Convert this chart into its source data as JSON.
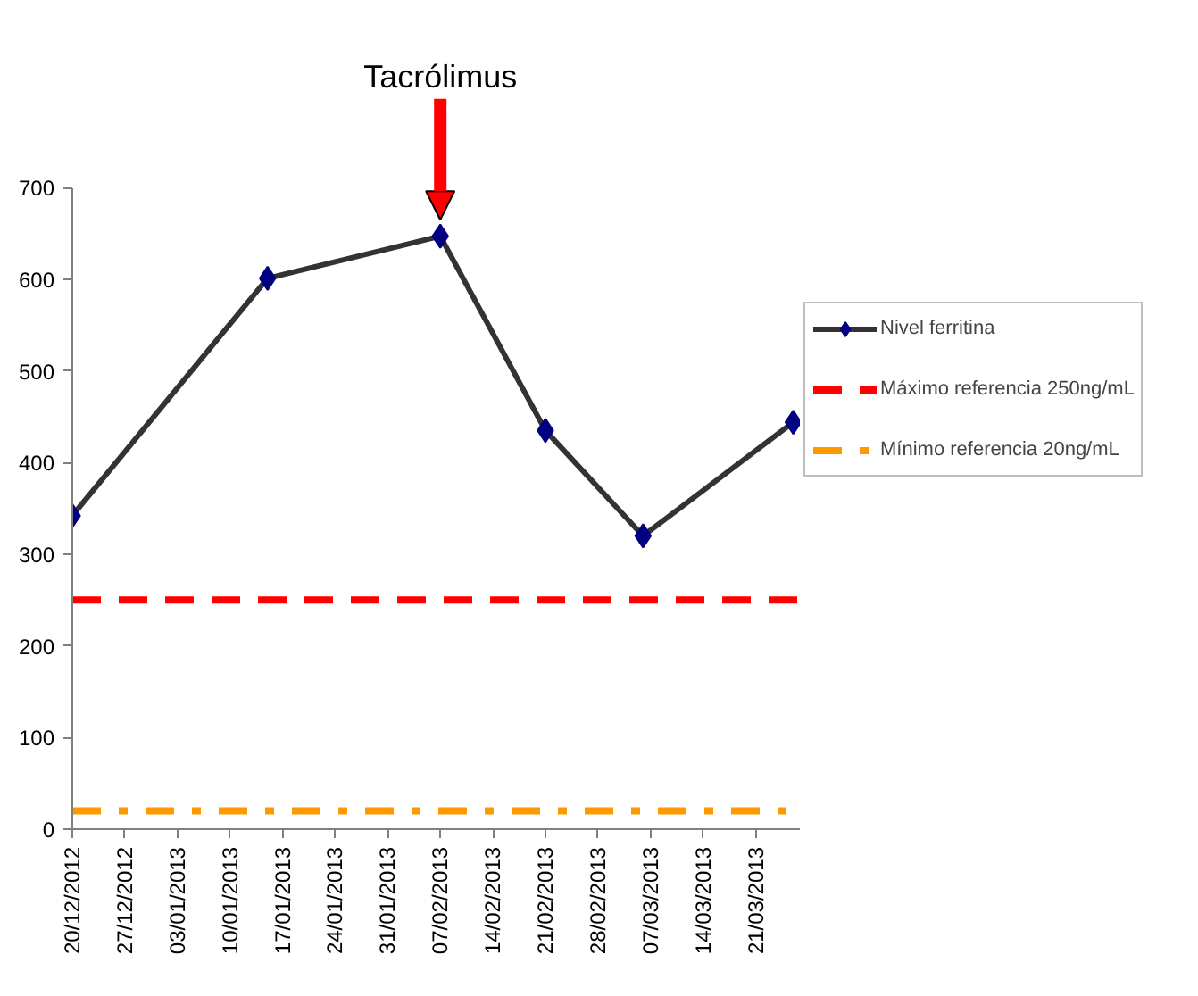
{
  "chart_data": {
    "type": "line",
    "x": [
      "2012-12-20",
      "2013-01-15",
      "2013-02-07",
      "2013-02-21",
      "2013-03-06",
      "2013-03-26"
    ],
    "series": [
      {
        "name": "Nivel ferritina",
        "color": "#333333",
        "values": [
          342,
          601,
          647,
          435,
          320,
          444
        ]
      }
    ],
    "marker": "diamond",
    "ref_lines": [
      {
        "axis": "y",
        "value": 250,
        "label": "Máximo referencia 250ng/mL",
        "color": "#ff0000",
        "line_style": "dashed"
      },
      {
        "axis": "y",
        "value": 20,
        "label": "Mínimo referencia 20ng/mL",
        "color": "#ff9900",
        "line_style": "dashdot"
      }
    ],
    "annotations": [
      "Tacrólimus"
    ],
    "xlim": [
      "2012-12-20",
      "2013-03-27"
    ],
    "xticks": [
      {
        "value": "2012-12-20",
        "label": "20/12/2012"
      },
      {
        "value": "2012-12-27",
        "label": "27/12/2012"
      },
      {
        "value": "2013-01-03",
        "label": "03/01/2013"
      },
      {
        "value": "2013-01-10",
        "label": "10/01/2013"
      },
      {
        "value": "2013-01-17",
        "label": "17/01/2013"
      },
      {
        "value": "2013-01-24",
        "label": "24/01/2013"
      },
      {
        "value": "2013-01-31",
        "label": "31/01/2013"
      },
      {
        "value": "2013-02-07",
        "label": "07/02/2013"
      },
      {
        "value": "2013-02-14",
        "label": "14/02/2013"
      },
      {
        "value": "2013-02-21",
        "label": "21/02/2013"
      },
      {
        "value": "2013-02-28",
        "label": "28/02/2013"
      },
      {
        "value": "2013-03-07",
        "label": "07/03/2013"
      },
      {
        "value": "2013-03-14",
        "label": "14/03/2013"
      },
      {
        "value": "2013-03-21",
        "label": "21/03/2013"
      }
    ],
    "ylim": [
      0,
      700
    ],
    "yticks": [
      0,
      100,
      200,
      300,
      400,
      500,
      600,
      700
    ],
    "grid": false,
    "legend": "right"
  }
}
